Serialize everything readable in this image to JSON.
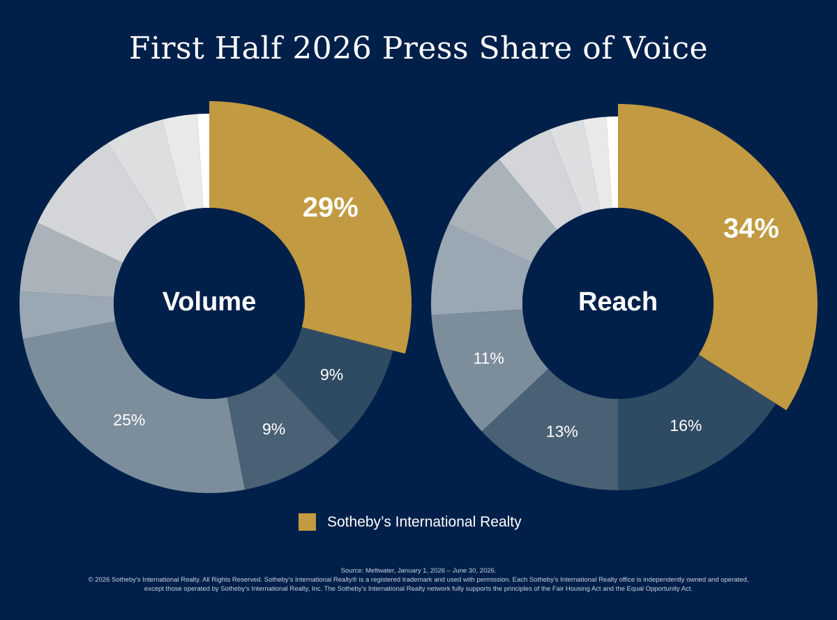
{
  "title": "First Half 2026 Press Share of Voice",
  "colors": {
    "background": "#00204a",
    "sothebys": "#c19a41",
    "hole": "#00204a"
  },
  "chart_data": [
    {
      "type": "pie",
      "center_label": "Volume",
      "slices": [
        {
          "value": 29,
          "label": "29%",
          "color": "#c19a41",
          "emphasis": true
        },
        {
          "value": 9,
          "label": "9%",
          "color": "#2f4b63"
        },
        {
          "value": 9,
          "label": "9%",
          "color": "#4a6075"
        },
        {
          "value": 25,
          "label": "25%",
          "color": "#7c8d9c"
        },
        {
          "value": 4,
          "label": "",
          "color": "#9aa8b4"
        },
        {
          "value": 6,
          "label": "",
          "color": "#abb3ba"
        },
        {
          "value": 9,
          "label": "",
          "color": "#d3d5d8"
        },
        {
          "value": 5,
          "label": "",
          "color": "#dcdedf"
        },
        {
          "value": 3,
          "label": "",
          "color": "#e9e9ea"
        },
        {
          "value": 1,
          "label": "",
          "color": "#ffffff"
        }
      ]
    },
    {
      "type": "pie",
      "center_label": "Reach",
      "slices": [
        {
          "value": 34,
          "label": "34%",
          "color": "#c19a41",
          "emphasis": true
        },
        {
          "value": 16,
          "label": "16%",
          "color": "#2f4b63"
        },
        {
          "value": 13,
          "label": "13%",
          "color": "#4a6075"
        },
        {
          "value": 11,
          "label": "11%",
          "color": "#7c8d9c"
        },
        {
          "value": 8,
          "label": "",
          "color": "#9aa8b4"
        },
        {
          "value": 7,
          "label": "",
          "color": "#abb3ba"
        },
        {
          "value": 5,
          "label": "",
          "color": "#d3d5d8"
        },
        {
          "value": 3,
          "label": "",
          "color": "#dcdedf"
        },
        {
          "value": 2,
          "label": "",
          "color": "#e9e9ea"
        },
        {
          "value": 1,
          "label": "",
          "color": "#ffffff"
        }
      ]
    }
  ],
  "legend": {
    "label": "Sotheby’s International Realty",
    "color": "#c19a41"
  },
  "footer": {
    "source": "Source: Meltwater, January 1, 2026 – June 30, 2026.",
    "line1": "© 2026 Sotheby’s International Realty. All Rights Reserved. Sotheby’s International Realty® is a registered trademark and used with permission. Each Sotheby’s International Realty office is independently owned and operated,",
    "line2": "except those operated by Sotheby’s International Realty, Inc. The Sotheby’s International Realty network fully supports the principles of the Fair Housing Act and the Equal Opportunity Act."
  }
}
